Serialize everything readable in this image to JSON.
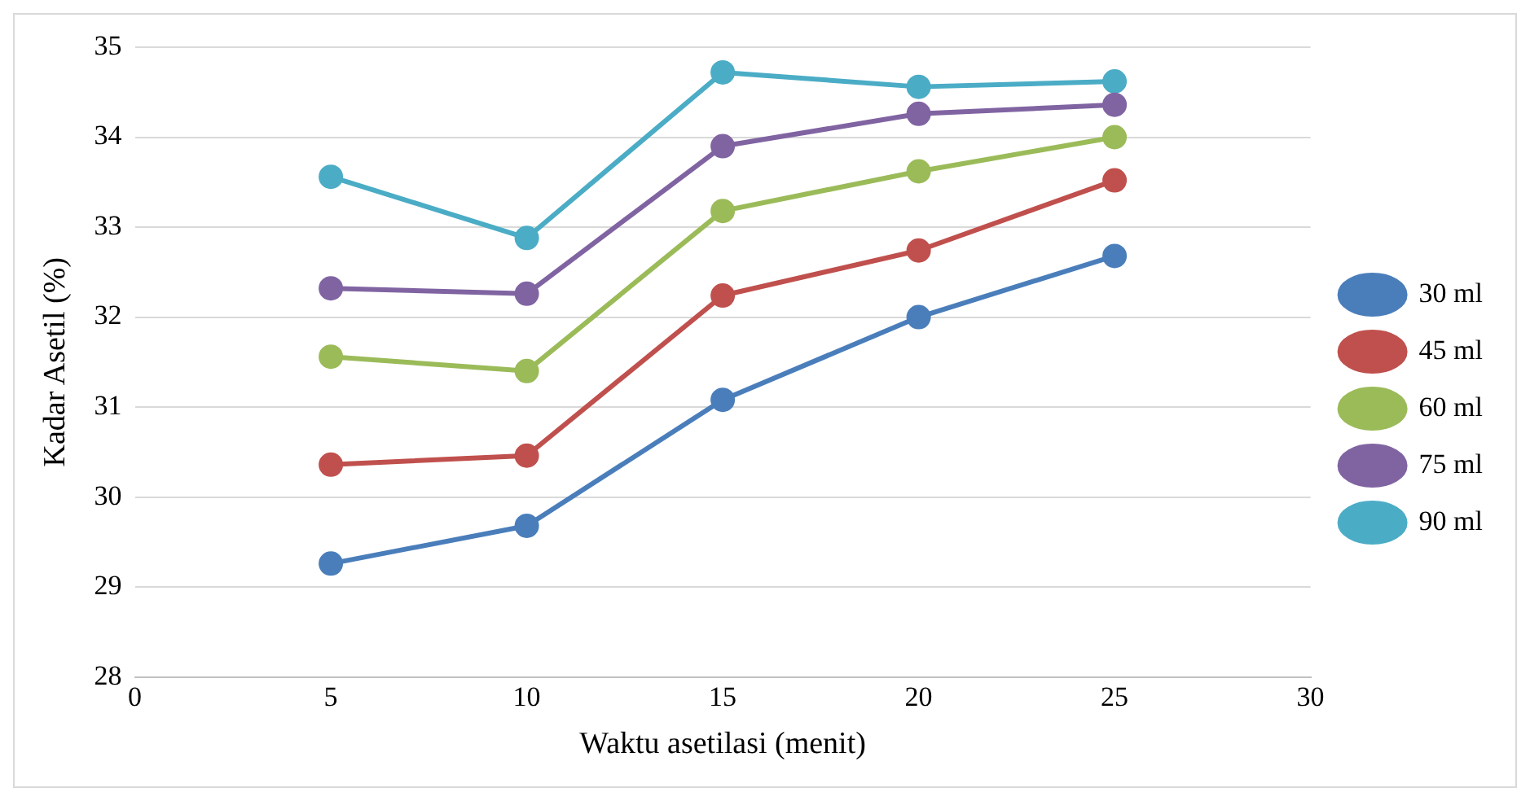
{
  "chart_data": {
    "type": "line",
    "xlabel": "Waktu asetilasi (menit)",
    "ylabel": "Kadar Asetil (%)",
    "x": [
      5,
      10,
      15,
      20,
      25
    ],
    "series": [
      {
        "name": "30 ml",
        "color": "#4a7ebb",
        "values": [
          29.26,
          29.68,
          31.08,
          32.0,
          32.68
        ]
      },
      {
        "name": "45 ml",
        "color": "#c0504d",
        "values": [
          30.36,
          30.46,
          32.24,
          32.74,
          33.52
        ]
      },
      {
        "name": "60 ml",
        "color": "#9bbb59",
        "values": [
          31.56,
          31.4,
          33.18,
          33.62,
          34.0
        ]
      },
      {
        "name": "75 ml",
        "color": "#8064a2",
        "values": [
          32.32,
          32.26,
          33.9,
          34.26,
          34.36
        ]
      },
      {
        "name": "90 ml",
        "color": "#4bacc6",
        "values": [
          33.56,
          32.88,
          34.72,
          34.56,
          34.62
        ]
      }
    ],
    "xlim": [
      0,
      30
    ],
    "xticks": [
      0,
      5,
      10,
      15,
      20,
      25,
      30
    ],
    "ylim": [
      28,
      35
    ],
    "yticks": [
      28,
      29,
      30,
      31,
      32,
      33,
      34,
      35
    ],
    "grid": "y",
    "legend": "right",
    "marker": "circle",
    "line_style": "solid"
  }
}
